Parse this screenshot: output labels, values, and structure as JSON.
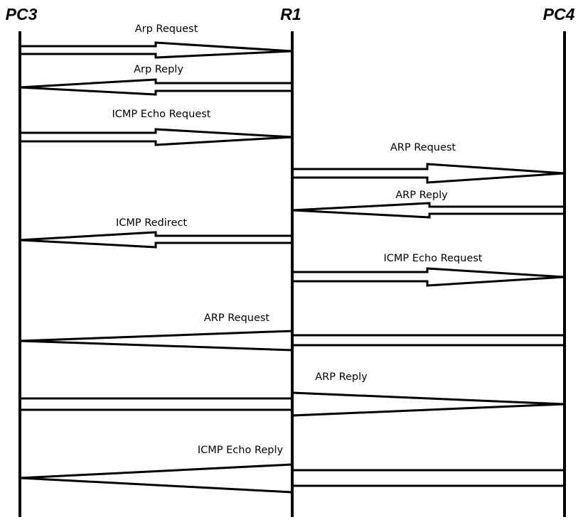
{
  "nodes": [
    "PC3",
    "R1",
    "PC4"
  ],
  "messages": [
    {
      "label": "Arp Request",
      "from": "PC3",
      "to": "R1"
    },
    {
      "label": "Arp Reply",
      "from": "R1",
      "to": "PC3"
    },
    {
      "label": "ICMP Echo Request",
      "from": "PC3",
      "to": "R1"
    },
    {
      "label": "ARP Request",
      "from": "R1",
      "to": "PC4"
    },
    {
      "label": "ARP Reply",
      "from": "PC4",
      "to": "R1"
    },
    {
      "label": "ICMP Redirect",
      "from": "R1",
      "to": "PC3"
    },
    {
      "label": "ICMP Echo Request",
      "from": "R1",
      "to": "PC4"
    },
    {
      "label": "ARP Request",
      "from": "PC4",
      "to": "PC3"
    },
    {
      "label": "ARP Reply",
      "from": "PC3",
      "to": "PC4"
    },
    {
      "label": "ICMP Echo Reply",
      "from": "PC4",
      "to": "PC3"
    }
  ]
}
